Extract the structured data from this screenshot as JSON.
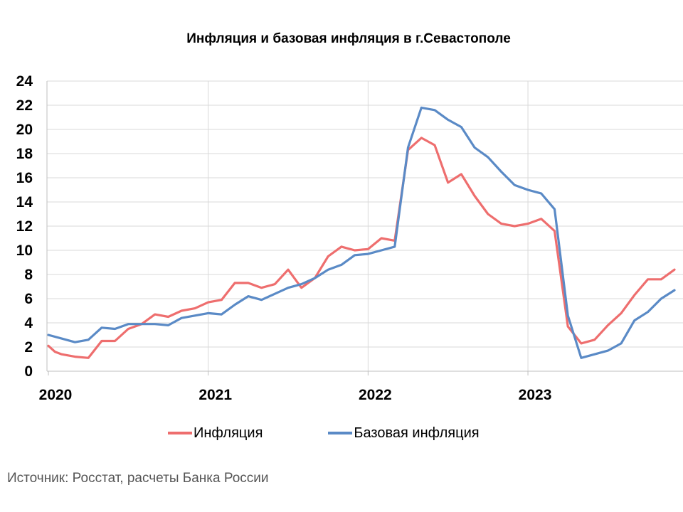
{
  "title": "Инфляция и базовая инфляция в г.Севастополе",
  "source": "Источник: Росстат, расчеты Банка России",
  "chart_data": {
    "type": "line",
    "title": "Инфляция и базовая инфляция в г.Севастополе",
    "xlabel": "",
    "ylabel": "",
    "ylim": [
      0,
      24
    ],
    "yticks": [
      0,
      2,
      4,
      6,
      8,
      10,
      12,
      14,
      16,
      18,
      20,
      22,
      24
    ],
    "xlim": [
      0,
      47
    ],
    "xticks": [
      {
        "label": "2020",
        "x": 0
      },
      {
        "label": "2021",
        "x": 12
      },
      {
        "label": "2022",
        "x": 24
      },
      {
        "label": "2023",
        "x": 36
      }
    ],
    "grid": "horizontal",
    "legend_position": "bottom",
    "series": [
      {
        "name": "Инфляция",
        "color": "#EE6E6E",
        "x": [
          0,
          0.5,
          1,
          2,
          3,
          4,
          5,
          6,
          7,
          8,
          9,
          10,
          11,
          12,
          13,
          14,
          15,
          16,
          17,
          18,
          19,
          20,
          21,
          22,
          23,
          24,
          25,
          26,
          27,
          28,
          29,
          30,
          31,
          32,
          33,
          34,
          35,
          36,
          37,
          38,
          39,
          40,
          41,
          42,
          43,
          44,
          45,
          46,
          47
        ],
        "values": [
          2.1,
          1.6,
          1.4,
          1.2,
          1.1,
          2.5,
          2.5,
          3.5,
          3.9,
          4.7,
          4.5,
          5.0,
          5.2,
          5.7,
          5.9,
          7.3,
          7.3,
          6.9,
          7.2,
          8.4,
          6.9,
          7.7,
          9.5,
          10.3,
          10.0,
          10.1,
          11.0,
          10.8,
          18.3,
          19.3,
          18.7,
          15.6,
          16.3,
          14.5,
          13.0,
          12.2,
          12.0,
          12.2,
          12.6,
          11.6,
          3.7,
          2.3,
          2.6,
          3.8,
          4.8,
          6.3,
          7.6,
          7.6,
          8.4
        ]
      },
      {
        "name": "Базовая инфляция",
        "color": "#5A8AC6",
        "x": [
          0,
          1,
          2,
          3,
          4,
          5,
          6,
          7,
          8,
          9,
          10,
          11,
          12,
          13,
          14,
          15,
          16,
          17,
          18,
          19,
          20,
          21,
          22,
          23,
          24,
          25,
          26,
          27,
          28,
          29,
          30,
          31,
          32,
          33,
          34,
          35,
          36,
          37,
          38,
          39,
          40,
          41,
          42,
          43,
          44,
          45,
          46,
          47
        ],
        "values": [
          3.0,
          2.7,
          2.4,
          2.6,
          3.6,
          3.5,
          3.9,
          3.9,
          3.9,
          3.8,
          4.4,
          4.6,
          4.8,
          4.7,
          5.5,
          6.2,
          5.9,
          6.4,
          6.9,
          7.2,
          7.7,
          8.4,
          8.8,
          9.6,
          9.7,
          10.0,
          10.3,
          18.5,
          21.8,
          21.6,
          20.8,
          20.2,
          18.5,
          17.7,
          16.5,
          15.4,
          15.0,
          14.7,
          13.4,
          4.6,
          1.1,
          1.4,
          1.7,
          2.3,
          4.2,
          4.9,
          6.0,
          6.7
        ]
      }
    ]
  }
}
